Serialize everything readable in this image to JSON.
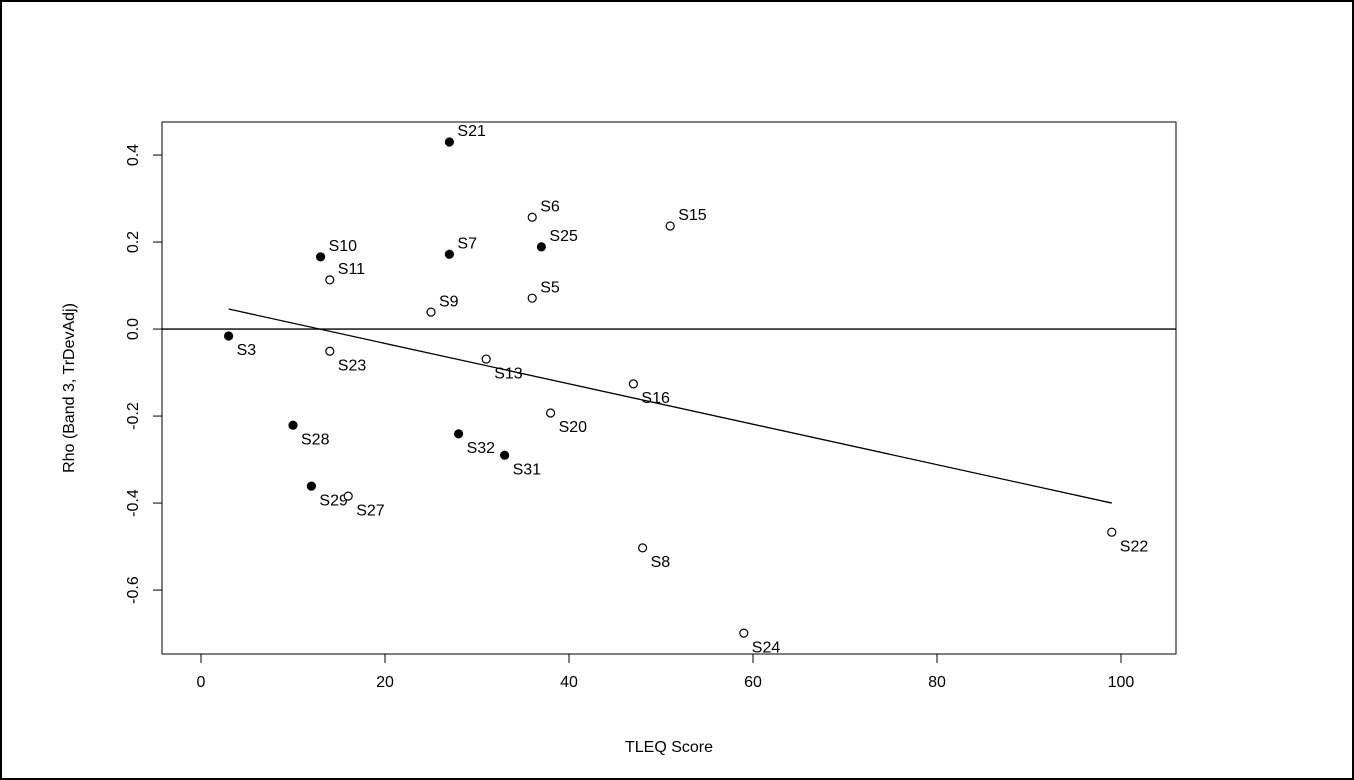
{
  "chart_data": {
    "type": "scatter",
    "x_label": "TLEQ Score",
    "y_label": "Rho (Band 3, TrDevAdj)",
    "xlim": [
      -4.24,
      105.98
    ],
    "ylim": [
      -0.747,
      0.476
    ],
    "xticks": [
      0,
      20,
      40,
      60,
      80,
      100
    ],
    "yticks": [
      -0.6,
      -0.4,
      -0.2,
      {
        "value": 0,
        "label": "0.0"
      },
      0.2,
      0.4
    ],
    "hline": 0,
    "fit": {
      "x": [
        3,
        99
      ],
      "y": [
        0.046,
        -0.4
      ]
    },
    "color": "#000000",
    "points": {
      "labels": [
        "S21",
        "S6",
        "S15",
        "S10",
        "S7",
        "S25",
        "S11",
        "S5",
        "S9",
        "S3",
        "S23",
        "S13",
        "S16",
        "S20",
        "S28",
        "S32",
        "S31",
        "S29",
        "S27",
        "S8",
        "S22",
        "S24"
      ],
      "x": [
        27,
        36,
        51,
        13,
        27,
        37,
        14,
        36,
        25,
        3,
        14,
        31,
        47,
        38,
        10,
        28,
        33,
        12,
        16,
        48,
        99,
        59
      ],
      "y": [
        0.43,
        0.257,
        0.237,
        0.166,
        0.172,
        0.189,
        0.113,
        0.071,
        0.039,
        -0.016,
        -0.051,
        -0.069,
        -0.126,
        -0.193,
        -0.221,
        -0.241,
        -0.29,
        -0.361,
        -0.384,
        -0.503,
        -0.467,
        -0.699
      ],
      "filled": [
        true,
        false,
        false,
        true,
        true,
        true,
        false,
        false,
        false,
        true,
        false,
        false,
        false,
        false,
        true,
        true,
        true,
        true,
        false,
        false,
        false,
        false
      ]
    }
  }
}
